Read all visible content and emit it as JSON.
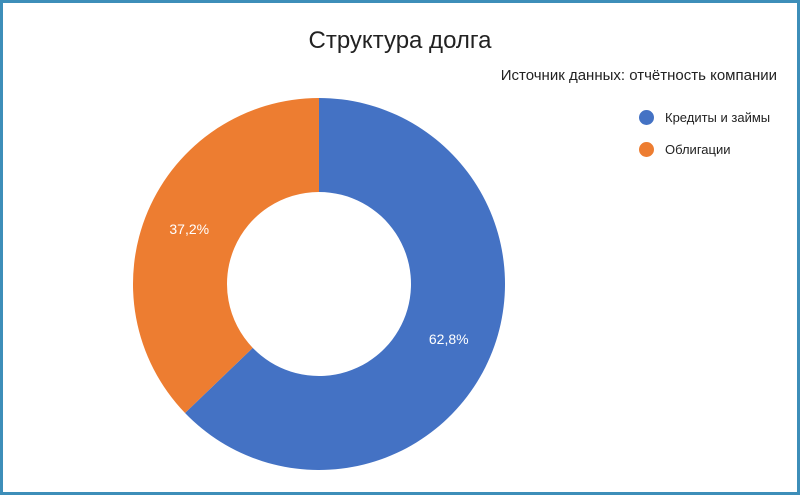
{
  "chart_data": {
    "type": "pie",
    "title": "Структура долга",
    "subtitle": "Источник данных: отчётность компании",
    "categories": [
      "Кредиты и займы",
      "Облигации"
    ],
    "values": [
      62.8,
      37.2
    ],
    "value_labels": [
      "62,8%",
      "37,2%"
    ],
    "colors": [
      "#4472c4",
      "#ed7d31"
    ],
    "donut": true,
    "legend_position": "top-right"
  }
}
